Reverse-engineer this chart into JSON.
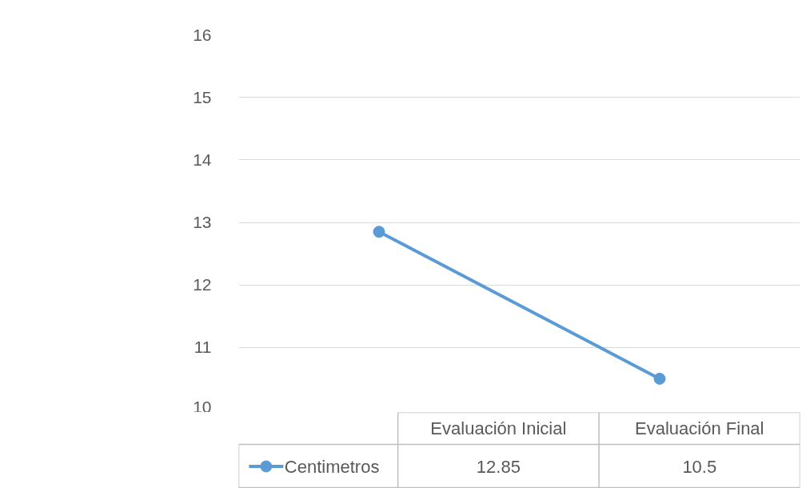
{
  "chart_data": {
    "type": "line",
    "categories": [
      "Evaluación Inicial",
      "Evaluación Final"
    ],
    "series": [
      {
        "name": "Centimetros",
        "color": "#5b9bd5",
        "values": [
          12.85,
          10.5
        ]
      }
    ],
    "ylim": [
      10,
      16
    ],
    "yticks": [
      10,
      11,
      12,
      13,
      14,
      15,
      16
    ],
    "grid": "y",
    "marker": "circle",
    "legend": "bottom left",
    "data_labels": true
  }
}
